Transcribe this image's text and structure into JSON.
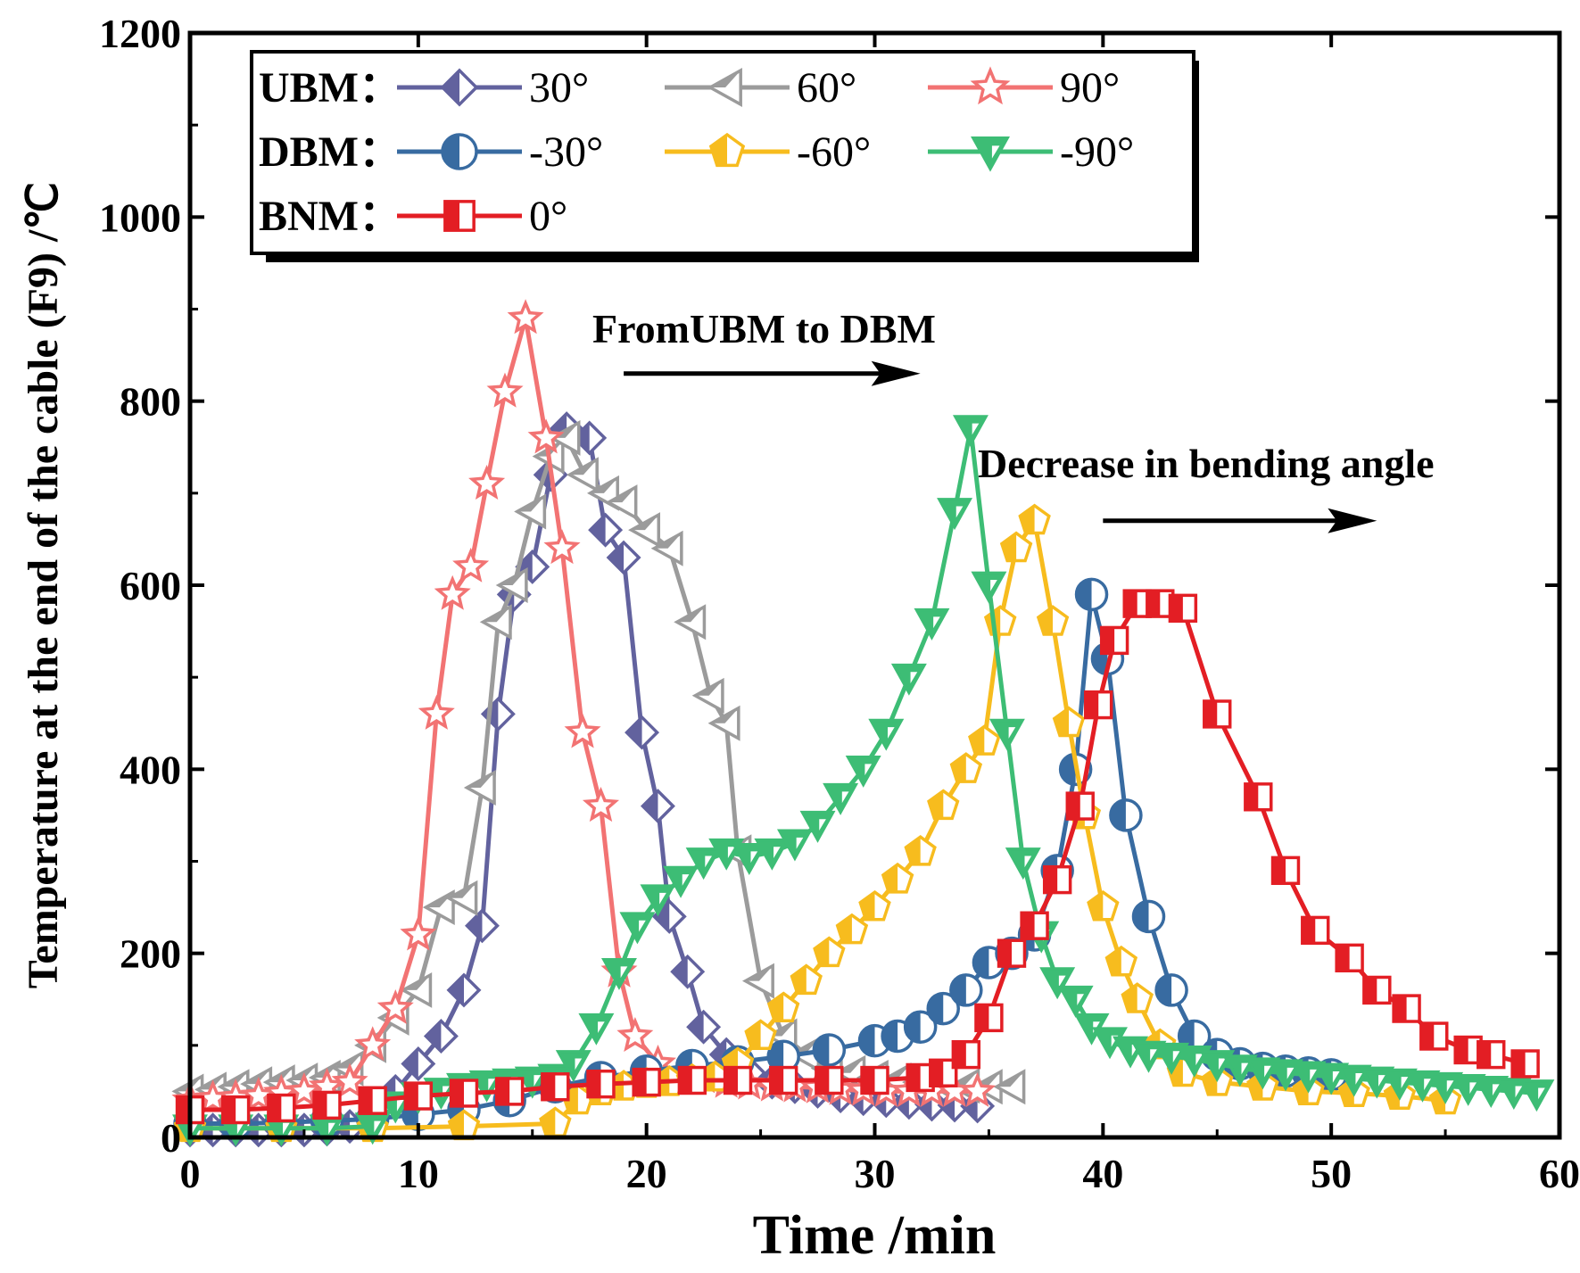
{
  "chart_data": {
    "type": "line",
    "title": "",
    "xlabel": "Time /min",
    "ylabel": "Temperature at the end of the cable (F9) /℃",
    "xlim": [
      0,
      60
    ],
    "ylim": [
      0,
      1200
    ],
    "x_ticks": [
      "0",
      "10",
      "20",
      "30",
      "40",
      "50",
      "60"
    ],
    "y_ticks": [
      "0",
      "200",
      "400",
      "600",
      "800",
      "1000",
      "1200"
    ],
    "legend": {
      "placement": "top-left",
      "rows": [
        {
          "group": "UBM：",
          "entries": [
            "30°",
            "60°",
            "90°"
          ]
        },
        {
          "group": "DBM：",
          "entries": [
            "-30°",
            "-60°",
            "-90°"
          ]
        },
        {
          "group": "BNM：",
          "entries": [
            "0°"
          ]
        }
      ]
    },
    "annotations": [
      {
        "text": "FromUBM to DBM",
        "arrow_from": [
          19,
          830
        ],
        "arrow_to": [
          32,
          830
        ]
      },
      {
        "text": "Decrease in bending angle",
        "arrow_from": [
          40,
          670
        ],
        "arrow_to": [
          52,
          670
        ]
      }
    ],
    "series": [
      {
        "name": "UBM 30°",
        "color": "#62629e",
        "marker": "diamond",
        "points": [
          [
            0,
            8
          ],
          [
            1,
            8
          ],
          [
            2,
            8
          ],
          [
            3,
            8
          ],
          [
            4,
            8
          ],
          [
            5,
            8
          ],
          [
            6,
            9
          ],
          [
            7,
            12
          ],
          [
            8,
            25
          ],
          [
            9,
            50
          ],
          [
            10,
            80
          ],
          [
            11,
            110
          ],
          [
            12,
            160
          ],
          [
            12.8,
            230
          ],
          [
            13.5,
            460
          ],
          [
            14.2,
            590
          ],
          [
            15,
            620
          ],
          [
            15.8,
            720
          ],
          [
            16.5,
            770
          ],
          [
            17.5,
            760
          ],
          [
            18.2,
            660
          ],
          [
            19,
            630
          ],
          [
            19.8,
            440
          ],
          [
            20.5,
            360
          ],
          [
            21,
            240
          ],
          [
            21.8,
            180
          ],
          [
            22.5,
            120
          ],
          [
            23.5,
            90
          ],
          [
            24.5,
            70
          ],
          [
            25.5,
            60
          ],
          [
            26.5,
            55
          ],
          [
            27.5,
            50
          ],
          [
            28.5,
            45
          ],
          [
            29.5,
            42
          ],
          [
            30.5,
            40
          ],
          [
            31.5,
            38
          ],
          [
            32.5,
            36
          ],
          [
            33.5,
            35
          ],
          [
            34.5,
            34
          ]
        ]
      },
      {
        "name": "UBM 60°",
        "color": "#9b9b9b",
        "marker": "triangle-left",
        "points": [
          [
            0,
            50
          ],
          [
            1,
            52
          ],
          [
            2,
            55
          ],
          [
            3,
            58
          ],
          [
            4,
            60
          ],
          [
            5,
            62
          ],
          [
            6,
            65
          ],
          [
            7,
            75
          ],
          [
            8,
            100
          ],
          [
            9,
            130
          ],
          [
            10,
            160
          ],
          [
            11,
            250
          ],
          [
            12,
            260
          ],
          [
            12.8,
            380
          ],
          [
            13.5,
            560
          ],
          [
            14.2,
            600
          ],
          [
            15,
            680
          ],
          [
            15.8,
            740
          ],
          [
            16.5,
            760
          ],
          [
            17.3,
            720
          ],
          [
            18.2,
            700
          ],
          [
            19,
            690
          ],
          [
            20,
            660
          ],
          [
            21,
            640
          ],
          [
            22,
            560
          ],
          [
            22.8,
            480
          ],
          [
            23.5,
            450
          ],
          [
            24,
            310
          ],
          [
            25,
            170
          ],
          [
            26,
            110
          ],
          [
            27,
            90
          ],
          [
            28,
            75
          ],
          [
            29,
            70
          ],
          [
            30,
            65
          ],
          [
            31,
            62
          ],
          [
            32,
            60
          ],
          [
            33,
            58
          ],
          [
            34,
            56
          ],
          [
            35,
            55
          ],
          [
            36,
            55
          ]
        ]
      },
      {
        "name": "UBM 90°",
        "color": "#f27373",
        "marker": "star",
        "points": [
          [
            0,
            40
          ],
          [
            1,
            42
          ],
          [
            2,
            43
          ],
          [
            3,
            45
          ],
          [
            4,
            48
          ],
          [
            5,
            50
          ],
          [
            6,
            55
          ],
          [
            7,
            60
          ],
          [
            8,
            100
          ],
          [
            9,
            140
          ],
          [
            10,
            220
          ],
          [
            10.8,
            460
          ],
          [
            11.5,
            590
          ],
          [
            12.3,
            620
          ],
          [
            13,
            710
          ],
          [
            13.8,
            810
          ],
          [
            14.7,
            890
          ],
          [
            15.6,
            760
          ],
          [
            16.3,
            640
          ],
          [
            17.2,
            440
          ],
          [
            18,
            360
          ],
          [
            18.8,
            180
          ],
          [
            19.5,
            110
          ],
          [
            20.5,
            80
          ],
          [
            21.5,
            70
          ],
          [
            22.5,
            65
          ],
          [
            23.5,
            60
          ],
          [
            24.5,
            58
          ],
          [
            25.5,
            56
          ],
          [
            26.5,
            55
          ],
          [
            27.5,
            54
          ],
          [
            28.5,
            52
          ],
          [
            29.5,
            51
          ],
          [
            30.5,
            50
          ],
          [
            31.5,
            50
          ],
          [
            32.5,
            50
          ],
          [
            33.5,
            50
          ],
          [
            34.5,
            50
          ]
        ]
      },
      {
        "name": "DBM -30°",
        "color": "#386ba1",
        "marker": "circle-half",
        "points": [
          [
            0,
            15
          ],
          [
            2,
            15
          ],
          [
            4,
            16
          ],
          [
            6,
            18
          ],
          [
            8,
            20
          ],
          [
            10,
            25
          ],
          [
            12,
            30
          ],
          [
            14,
            40
          ],
          [
            16,
            55
          ],
          [
            18,
            65
          ],
          [
            20,
            72
          ],
          [
            22,
            78
          ],
          [
            24,
            82
          ],
          [
            26,
            88
          ],
          [
            28,
            95
          ],
          [
            30,
            105
          ],
          [
            31,
            110
          ],
          [
            32,
            120
          ],
          [
            33,
            140
          ],
          [
            34,
            160
          ],
          [
            35,
            190
          ],
          [
            36,
            200
          ],
          [
            37,
            220
          ],
          [
            38,
            290
          ],
          [
            38.8,
            400
          ],
          [
            39.5,
            590
          ],
          [
            40.2,
            520
          ],
          [
            41,
            350
          ],
          [
            42,
            240
          ],
          [
            43,
            160
          ],
          [
            44,
            110
          ],
          [
            45,
            90
          ],
          [
            46,
            80
          ],
          [
            47,
            75
          ],
          [
            48,
            72
          ],
          [
            49,
            70
          ],
          [
            50,
            68
          ]
        ]
      },
      {
        "name": "DBM -60°",
        "color": "#f7bc1e",
        "marker": "pentagon",
        "points": [
          [
            0,
            10
          ],
          [
            4,
            10
          ],
          [
            8,
            10
          ],
          [
            12,
            12
          ],
          [
            16,
            15
          ],
          [
            17,
            40
          ],
          [
            18,
            50
          ],
          [
            19,
            55
          ],
          [
            20,
            58
          ],
          [
            21,
            60
          ],
          [
            22,
            62
          ],
          [
            23,
            65
          ],
          [
            24,
            80
          ],
          [
            25,
            110
          ],
          [
            26,
            140
          ],
          [
            27,
            170
          ],
          [
            28,
            200
          ],
          [
            29,
            225
          ],
          [
            30,
            250
          ],
          [
            31,
            280
          ],
          [
            32,
            310
          ],
          [
            33,
            360
          ],
          [
            34,
            400
          ],
          [
            34.8,
            430
          ],
          [
            35.5,
            560
          ],
          [
            36.2,
            640
          ],
          [
            37,
            670
          ],
          [
            37.8,
            560
          ],
          [
            38.5,
            450
          ],
          [
            39.2,
            350
          ],
          [
            40,
            250
          ],
          [
            40.8,
            190
          ],
          [
            41.5,
            150
          ],
          [
            42.5,
            100
          ],
          [
            43.5,
            70
          ],
          [
            45,
            60
          ],
          [
            47,
            55
          ],
          [
            49,
            50
          ],
          [
            51,
            48
          ],
          [
            53,
            45
          ],
          [
            55,
            40
          ]
        ]
      },
      {
        "name": "DBM -90°",
        "color": "#3dbd75",
        "marker": "triangle-down",
        "points": [
          [
            0,
            10
          ],
          [
            2,
            10
          ],
          [
            4,
            10
          ],
          [
            6,
            10
          ],
          [
            8,
            12
          ],
          [
            9,
            35
          ],
          [
            10,
            45
          ],
          [
            11,
            50
          ],
          [
            12,
            55
          ],
          [
            13,
            58
          ],
          [
            14,
            60
          ],
          [
            15,
            62
          ],
          [
            16,
            65
          ],
          [
            16.8,
            80
          ],
          [
            17.8,
            120
          ],
          [
            18.8,
            180
          ],
          [
            19.6,
            230
          ],
          [
            20.5,
            260
          ],
          [
            21.5,
            280
          ],
          [
            22.5,
            300
          ],
          [
            23.5,
            310
          ],
          [
            24.5,
            305
          ],
          [
            25.5,
            310
          ],
          [
            26.5,
            320
          ],
          [
            27.5,
            340
          ],
          [
            28.5,
            370
          ],
          [
            29.5,
            400
          ],
          [
            30.5,
            440
          ],
          [
            31.5,
            500
          ],
          [
            32.5,
            560
          ],
          [
            33.5,
            680
          ],
          [
            34.2,
            770
          ],
          [
            35,
            600
          ],
          [
            35.8,
            440
          ],
          [
            36.5,
            300
          ],
          [
            37.3,
            220
          ],
          [
            38,
            170
          ],
          [
            38.8,
            150
          ],
          [
            39.5,
            120
          ],
          [
            40.3,
            105
          ],
          [
            41.2,
            95
          ],
          [
            42,
            90
          ],
          [
            43,
            88
          ],
          [
            44,
            85
          ],
          [
            45,
            80
          ],
          [
            46,
            75
          ],
          [
            47,
            72
          ],
          [
            48,
            70
          ],
          [
            49,
            68
          ],
          [
            50,
            66
          ],
          [
            51,
            64
          ],
          [
            52,
            62
          ],
          [
            53,
            60
          ],
          [
            54,
            58
          ],
          [
            55,
            56
          ],
          [
            56,
            54
          ],
          [
            57,
            52
          ],
          [
            58,
            50
          ],
          [
            59,
            48
          ]
        ]
      },
      {
        "name": "BNM 0°",
        "color": "#e31e24",
        "marker": "square-half",
        "points": [
          [
            0,
            30
          ],
          [
            2,
            30
          ],
          [
            4,
            32
          ],
          [
            6,
            35
          ],
          [
            8,
            40
          ],
          [
            10,
            45
          ],
          [
            12,
            48
          ],
          [
            14,
            50
          ],
          [
            16,
            55
          ],
          [
            18,
            58
          ],
          [
            20,
            60
          ],
          [
            22,
            62
          ],
          [
            24,
            62
          ],
          [
            26,
            62
          ],
          [
            28,
            62
          ],
          [
            30,
            62
          ],
          [
            32,
            65
          ],
          [
            33,
            70
          ],
          [
            34,
            90
          ],
          [
            35,
            130
          ],
          [
            36,
            200
          ],
          [
            37,
            230
          ],
          [
            38,
            280
          ],
          [
            39,
            360
          ],
          [
            39.8,
            470
          ],
          [
            40.5,
            540
          ],
          [
            41.5,
            580
          ],
          [
            42.5,
            580
          ],
          [
            43.5,
            575
          ],
          [
            45,
            460
          ],
          [
            46.8,
            370
          ],
          [
            48,
            290
          ],
          [
            49.3,
            225
          ],
          [
            50.8,
            195
          ],
          [
            52,
            160
          ],
          [
            53.3,
            140
          ],
          [
            54.5,
            110
          ],
          [
            56,
            95
          ],
          [
            57,
            90
          ],
          [
            58.5,
            80
          ]
        ]
      }
    ]
  }
}
